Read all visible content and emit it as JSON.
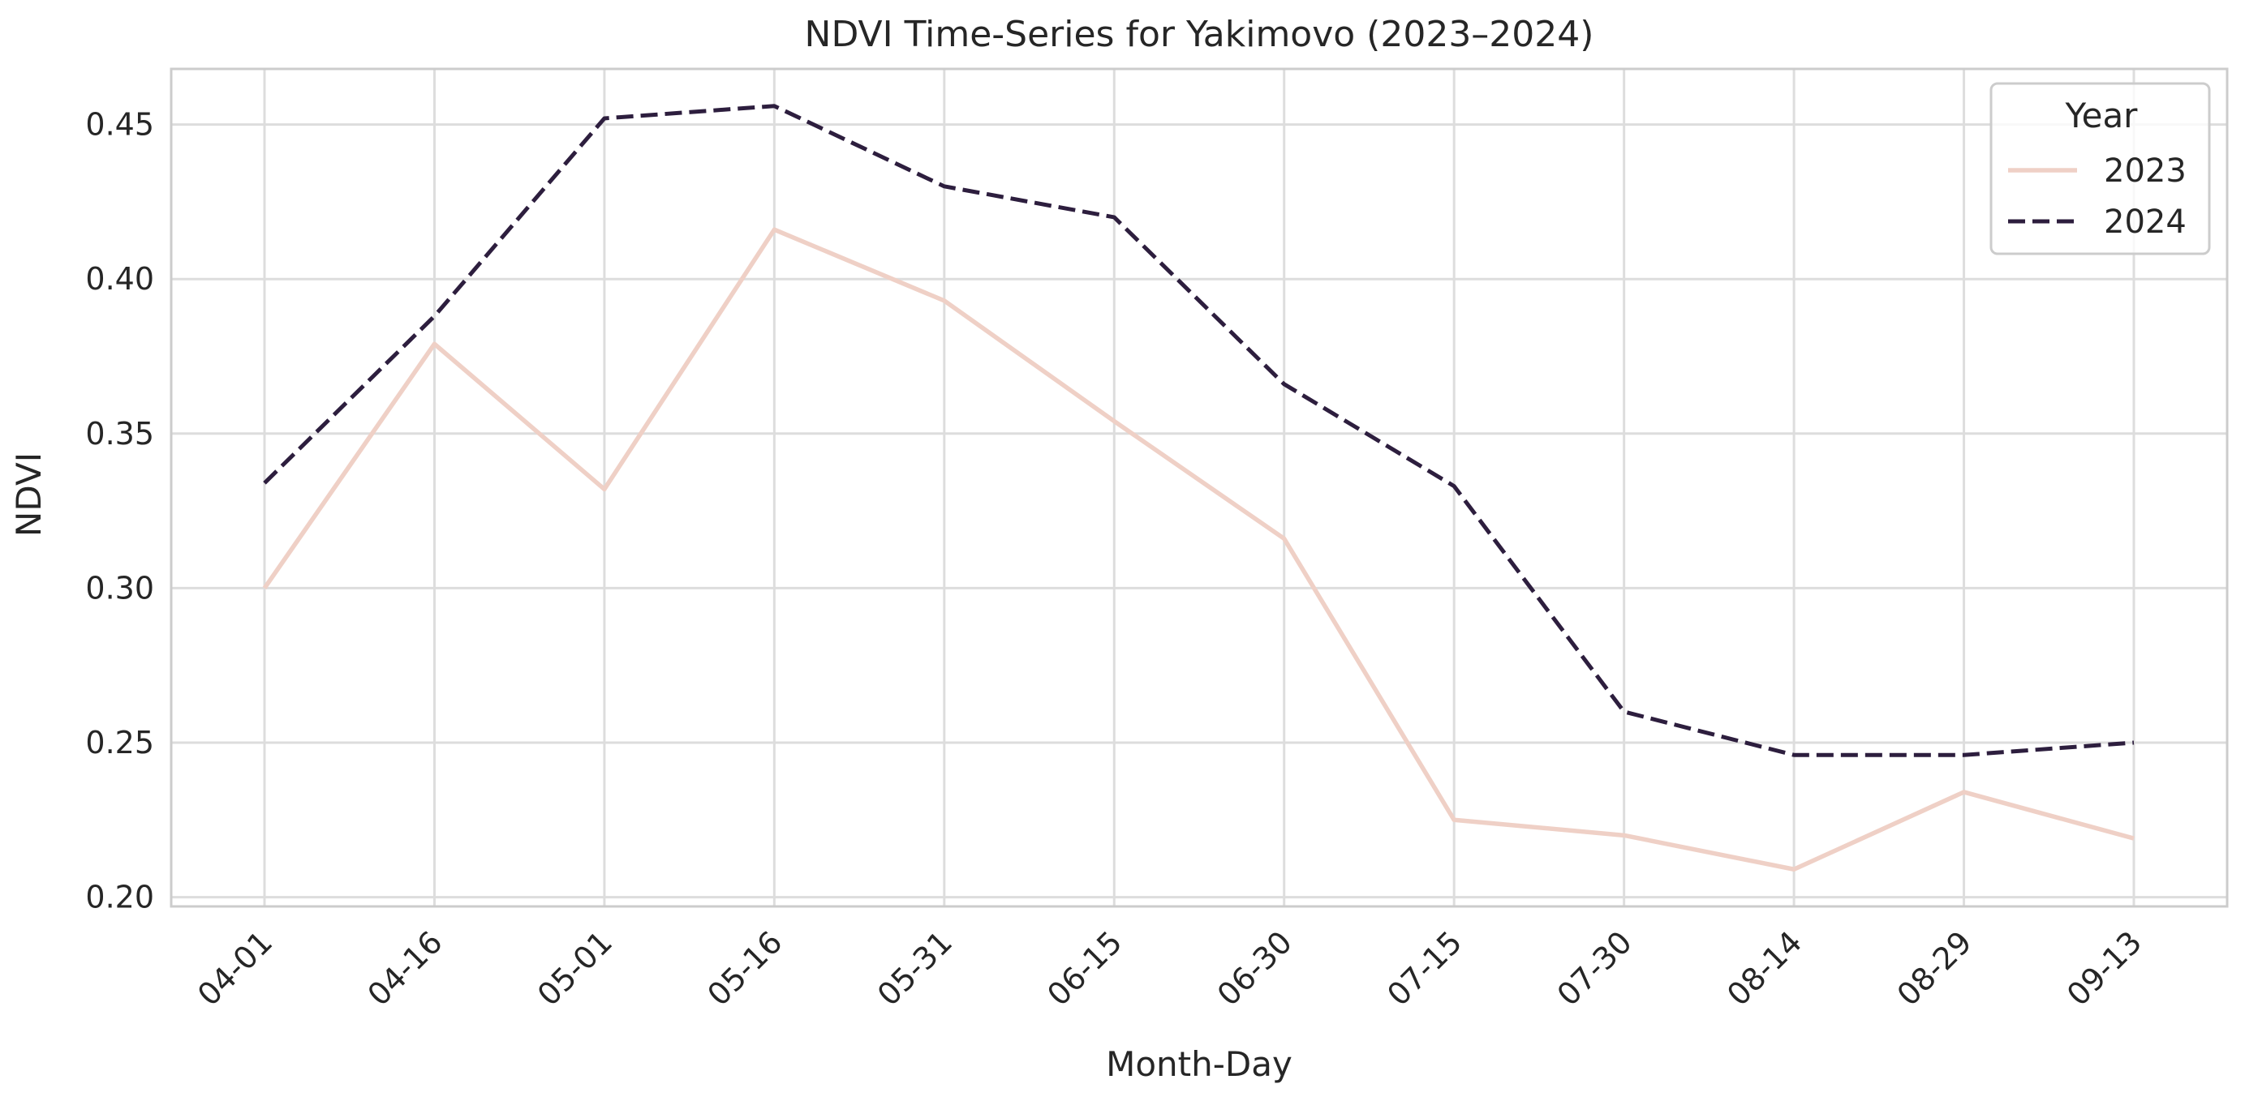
{
  "chart_data": {
    "type": "line",
    "title": "NDVI Time-Series for Yakimovo (2023–2024)",
    "xlabel": "Month-Day",
    "ylabel": "NDVI",
    "categories": [
      "04-01",
      "04-16",
      "05-01",
      "05-16",
      "05-31",
      "06-15",
      "06-30",
      "07-15",
      "07-30",
      "08-14",
      "08-29",
      "09-13"
    ],
    "ylim": [
      0.197,
      0.468
    ],
    "yticks": [
      0.2,
      0.25,
      0.3,
      0.35,
      0.4,
      0.45
    ],
    "ytick_labels": [
      "0.20",
      "0.25",
      "0.30",
      "0.35",
      "0.40",
      "0.45"
    ],
    "grid": true,
    "legend": {
      "title": "Year",
      "position": "top-right"
    },
    "series": [
      {
        "name": "2023",
        "color": "#efd0c6",
        "style": "solid",
        "values": [
          0.3,
          0.379,
          0.332,
          0.416,
          0.393,
          0.354,
          0.316,
          0.225,
          0.22,
          0.209,
          0.234,
          0.219
        ]
      },
      {
        "name": "2024",
        "color": "#2d1e3e",
        "style": "dashed",
        "values": [
          0.334,
          0.388,
          0.452,
          0.456,
          0.43,
          0.42,
          0.366,
          0.333,
          0.26,
          0.246,
          0.246,
          0.25
        ]
      }
    ]
  }
}
